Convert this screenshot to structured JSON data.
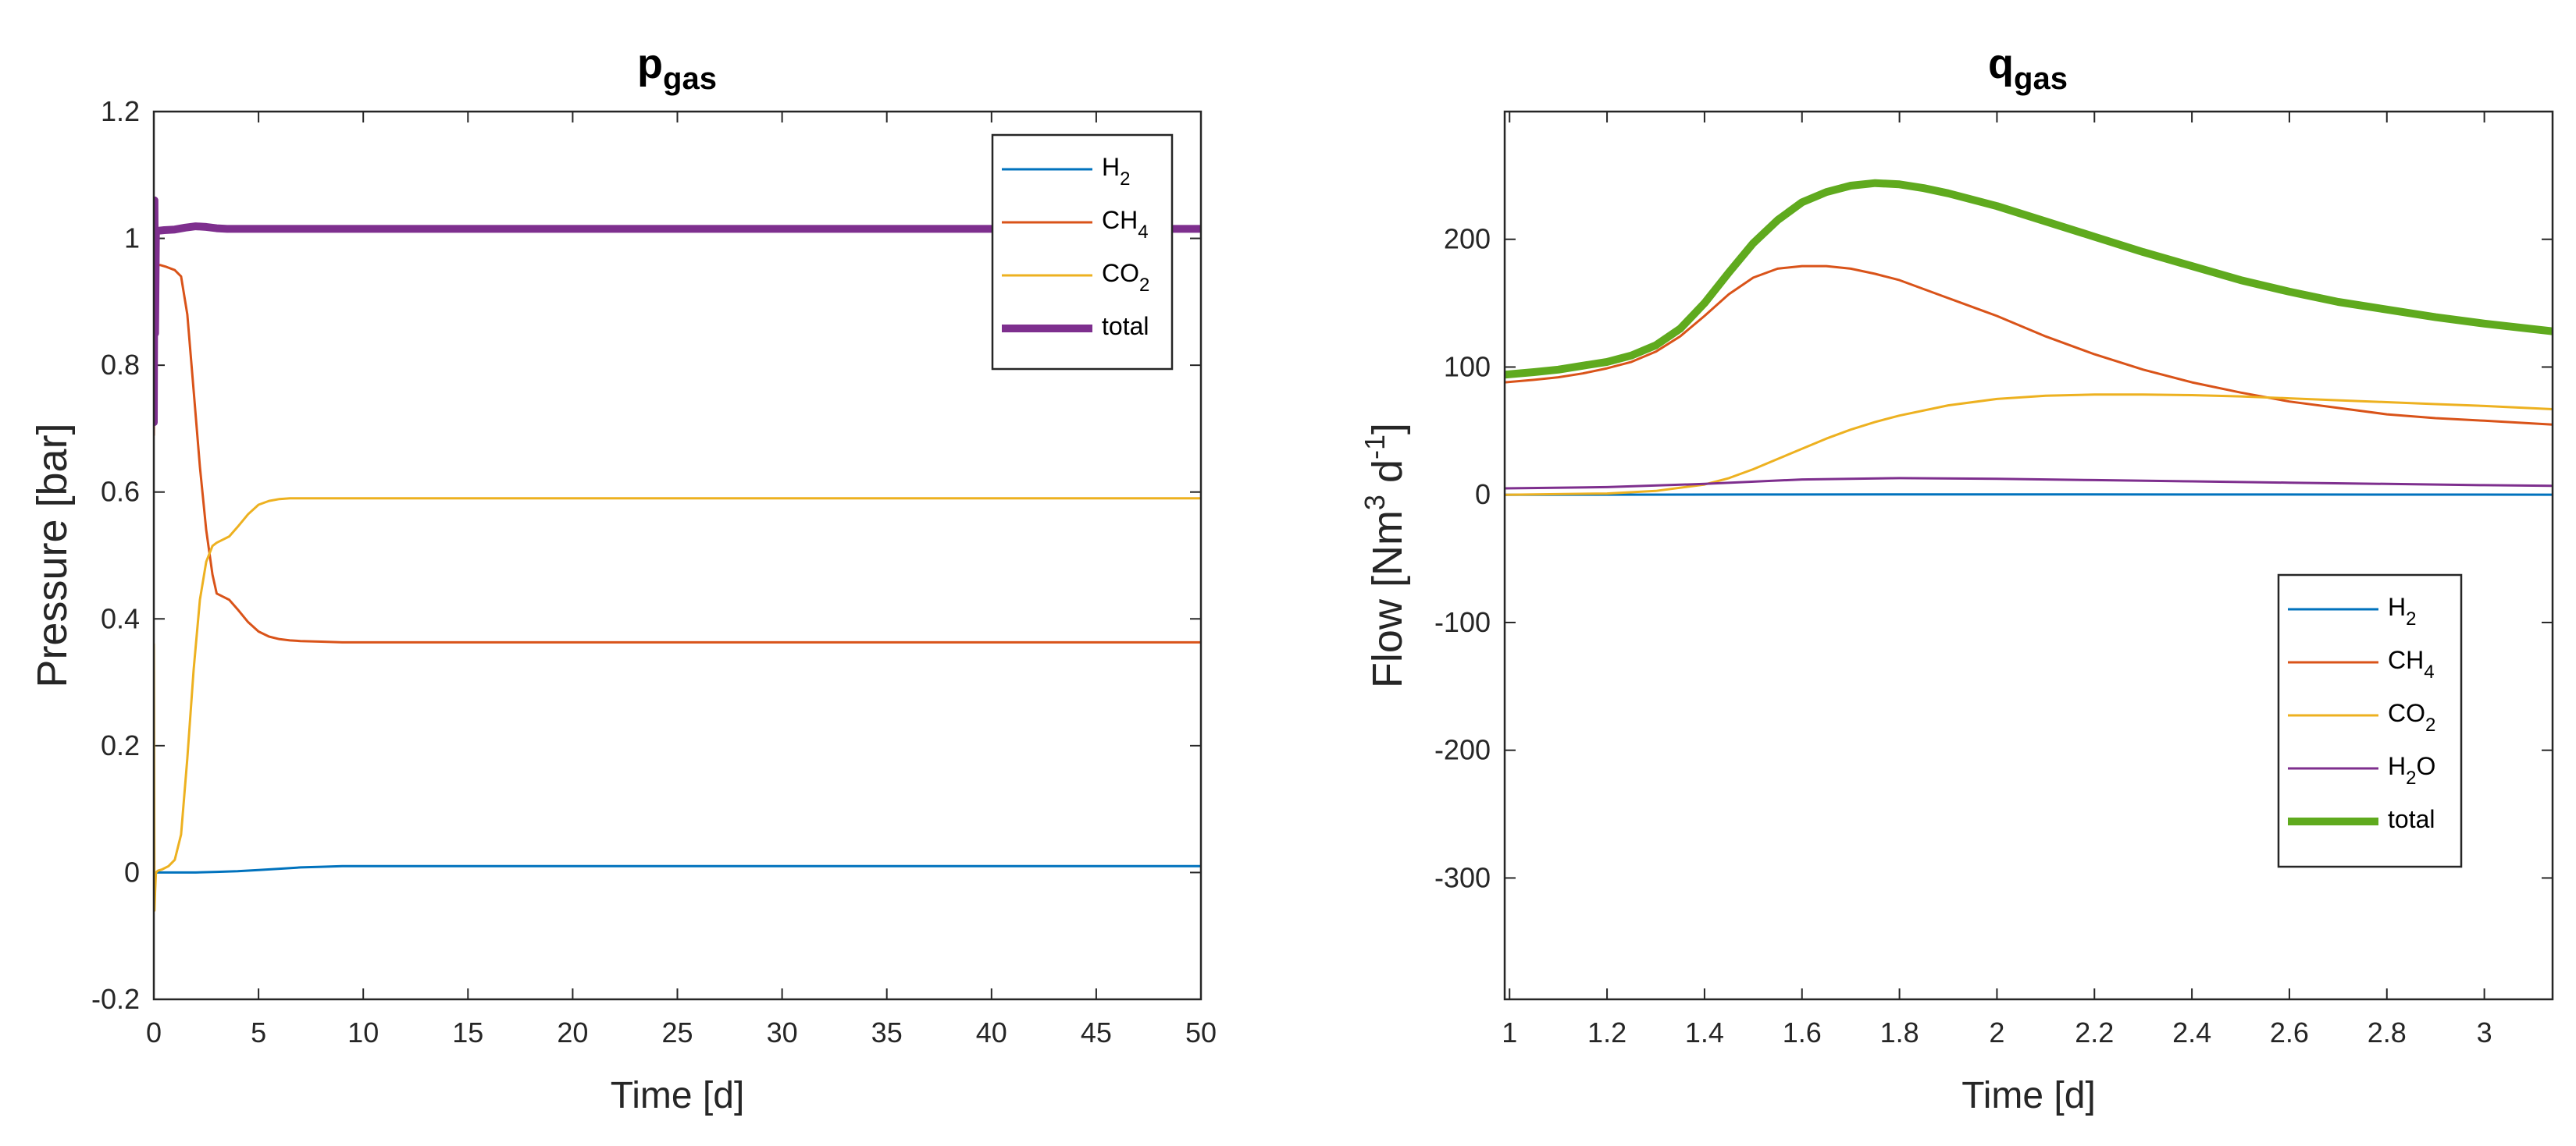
{
  "chart_data": [
    {
      "type": "line",
      "title": "p",
      "title_sub": "gas",
      "xlabel": "Time [d]",
      "ylabel": "Pressure [bar]",
      "xlim": [
        0,
        50
      ],
      "ylim": [
        -0.2,
        1.2
      ],
      "xticks": [
        0,
        5,
        10,
        15,
        20,
        25,
        30,
        35,
        40,
        45,
        50
      ],
      "yticks": [
        -0.2,
        0,
        0.2,
        0.4,
        0.6,
        0.8,
        1,
        1.2
      ],
      "xtick_labels": [
        "0",
        "5",
        "10",
        "15",
        "20",
        "25",
        "30",
        "35",
        "40",
        "45",
        "50"
      ],
      "ytick_labels": [
        "-0.2",
        "0",
        "0.2",
        "0.4",
        "0.6",
        "0.8",
        "1",
        "1.2"
      ],
      "grid": false,
      "legend_position": "top-right",
      "series": [
        {
          "name": "H2",
          "label_main": "H",
          "label_sub": "2",
          "color": "#0072BD",
          "width": 3,
          "x": [
            0,
            0.5,
            1,
            2,
            3,
            4,
            5,
            6,
            7,
            8,
            9,
            10,
            15,
            20,
            30,
            40,
            50
          ],
          "y": [
            0,
            0,
            0,
            0,
            0.001,
            0.002,
            0.004,
            0.006,
            0.008,
            0.009,
            0.01,
            0.01,
            0.01,
            0.01,
            0.01,
            0.01,
            0.01
          ]
        },
        {
          "name": "CH4",
          "label_main": "CH",
          "label_sub": "4",
          "color": "#D95319",
          "width": 3,
          "x": [
            0,
            0.05,
            0.15,
            0.3,
            0.6,
            1.0,
            1.3,
            1.6,
            1.9,
            2.2,
            2.5,
            2.8,
            3.0,
            3.3,
            3.6,
            4.0,
            4.5,
            5.0,
            5.5,
            6.0,
            6.5,
            7.0,
            8.0,
            9.0,
            10.0,
            12,
            15,
            20,
            30,
            40,
            50
          ],
          "y": [
            0.69,
            0.94,
            0.958,
            0.958,
            0.955,
            0.95,
            0.94,
            0.88,
            0.76,
            0.64,
            0.54,
            0.47,
            0.44,
            0.435,
            0.43,
            0.415,
            0.395,
            0.38,
            0.372,
            0.368,
            0.366,
            0.365,
            0.364,
            0.363,
            0.363,
            0.363,
            0.363,
            0.363,
            0.363,
            0.363,
            0.363
          ]
        },
        {
          "name": "CO2",
          "label_main": "CO",
          "label_sub": "2",
          "color": "#EDB120",
          "width": 3,
          "x": [
            0,
            0.03,
            0.06,
            0.1,
            0.2,
            0.4,
            0.7,
            1.0,
            1.3,
            1.6,
            1.9,
            2.2,
            2.5,
            2.8,
            3.0,
            3.3,
            3.6,
            4.0,
            4.5,
            5.0,
            5.5,
            6.0,
            6.5,
            7.0,
            8.0,
            10,
            15,
            20,
            30,
            40,
            50
          ],
          "y": [
            0.36,
            -0.06,
            -0.03,
            0.0,
            0.003,
            0.005,
            0.01,
            0.02,
            0.06,
            0.18,
            0.32,
            0.43,
            0.49,
            0.515,
            0.52,
            0.525,
            0.53,
            0.545,
            0.565,
            0.58,
            0.586,
            0.589,
            0.59,
            0.59,
            0.59,
            0.59,
            0.59,
            0.59,
            0.59,
            0.59,
            0.59
          ]
        },
        {
          "name": "total",
          "label_main": "total",
          "label_sub": "",
          "color": "#7E2F8E",
          "width": 10,
          "x": [
            0,
            0.03,
            0.06,
            0.1,
            0.15,
            0.2,
            0.5,
            1.0,
            1.5,
            2.0,
            2.5,
            3.0,
            3.5,
            4.0,
            5.0,
            6.0,
            10,
            20,
            30,
            40,
            50
          ],
          "y": [
            0.71,
            1.06,
            0.85,
            1.012,
            1.01,
            1.012,
            1.013,
            1.014,
            1.017,
            1.019,
            1.018,
            1.016,
            1.015,
            1.015,
            1.015,
            1.015,
            1.015,
            1.015,
            1.015,
            1.015,
            1.015
          ]
        }
      ]
    },
    {
      "type": "line",
      "title": "q",
      "title_sub": "gas",
      "xlabel": "Time [d]",
      "ylabel_main": "Flow [Nm",
      "ylabel_sup1": "3",
      "ylabel_mid": " d",
      "ylabel_sup2": "-1",
      "ylabel_end": "]",
      "xlim": [
        0.99,
        3.14
      ],
      "ylim": [
        -395,
        300
      ],
      "xticks": [
        1,
        1.2,
        1.4,
        1.6,
        1.8,
        2,
        2.2,
        2.4,
        2.6,
        2.8,
        3
      ],
      "yticks": [
        -300,
        -200,
        -100,
        0,
        100,
        200
      ],
      "xtick_labels": [
        "1",
        "1.2",
        "1.4",
        "1.6",
        "1.8",
        "2",
        "2.2",
        "2.4",
        "2.6",
        "2.8",
        "3"
      ],
      "ytick_labels": [
        "-300",
        "-200",
        "-100",
        "0",
        "100",
        "200"
      ],
      "grid": false,
      "legend_position": "bottom-right",
      "series": [
        {
          "name": "H2",
          "label_main": "H",
          "label_sub": "2",
          "label_end": "",
          "color": "#0072BD",
          "width": 3,
          "x": [
            0.99,
            1.5,
            2.0,
            2.5,
            3.14
          ],
          "y": [
            0,
            0.2,
            0.3,
            0.2,
            0.1
          ]
        },
        {
          "name": "CH4",
          "label_main": "CH",
          "label_sub": "4",
          "label_end": "",
          "color": "#D95319",
          "width": 3,
          "x": [
            0.99,
            1.05,
            1.1,
            1.15,
            1.2,
            1.25,
            1.3,
            1.35,
            1.4,
            1.45,
            1.5,
            1.55,
            1.6,
            1.65,
            1.7,
            1.75,
            1.8,
            1.9,
            2.0,
            2.1,
            2.2,
            2.3,
            2.4,
            2.5,
            2.6,
            2.7,
            2.8,
            2.9,
            3.0,
            3.14
          ],
          "y": [
            88,
            90,
            92,
            95,
            99,
            104,
            112,
            124,
            140,
            157,
            170,
            177,
            179,
            179,
            177,
            173,
            168,
            154,
            140,
            124,
            110,
            98,
            88,
            80,
            73,
            68,
            63,
            60,
            58,
            55
          ]
        },
        {
          "name": "CO2",
          "label_main": "CO",
          "label_sub": "2",
          "label_end": "",
          "color": "#EDB120",
          "width": 3,
          "x": [
            0.99,
            1.2,
            1.3,
            1.4,
            1.45,
            1.5,
            1.55,
            1.6,
            1.65,
            1.7,
            1.75,
            1.8,
            1.9,
            2.0,
            2.1,
            2.2,
            2.3,
            2.4,
            2.5,
            2.6,
            2.7,
            2.8,
            2.9,
            3.0,
            3.14
          ],
          "y": [
            0,
            1,
            3,
            8,
            13,
            20,
            28,
            36,
            44,
            51,
            57,
            62,
            70,
            75,
            77.5,
            78.5,
            78.5,
            78,
            77,
            75.5,
            74,
            72.5,
            71,
            69.5,
            67
          ]
        },
        {
          "name": "H2O",
          "label_main": "H",
          "label_sub": "2",
          "label_end": "O",
          "color": "#7E2F8E",
          "width": 3,
          "x": [
            0.99,
            1.2,
            1.4,
            1.6,
            1.8,
            2.0,
            2.2,
            2.4,
            2.6,
            2.8,
            3.0,
            3.14
          ],
          "y": [
            5,
            6,
            8.5,
            12,
            13,
            12.5,
            11.5,
            10.5,
            9.5,
            8.5,
            7.5,
            7
          ]
        },
        {
          "name": "total",
          "label_main": "total",
          "label_sub": "",
          "label_end": "",
          "color": "#5FAA1E",
          "width": 10,
          "x": [
            0.99,
            1.05,
            1.1,
            1.15,
            1.2,
            1.25,
            1.3,
            1.35,
            1.4,
            1.45,
            1.5,
            1.55,
            1.6,
            1.65,
            1.7,
            1.75,
            1.8,
            1.85,
            1.9,
            2.0,
            2.1,
            2.2,
            2.3,
            2.4,
            2.5,
            2.6,
            2.7,
            2.8,
            2.9,
            3.0,
            3.14
          ],
          "y": [
            94,
            96,
            98,
            101,
            104,
            109,
            117,
            130,
            150,
            174,
            197,
            215,
            229,
            237,
            242,
            244,
            243,
            240,
            236,
            226,
            214,
            202,
            190,
            179,
            168,
            159,
            151,
            145,
            139,
            134,
            128
          ]
        }
      ]
    }
  ]
}
